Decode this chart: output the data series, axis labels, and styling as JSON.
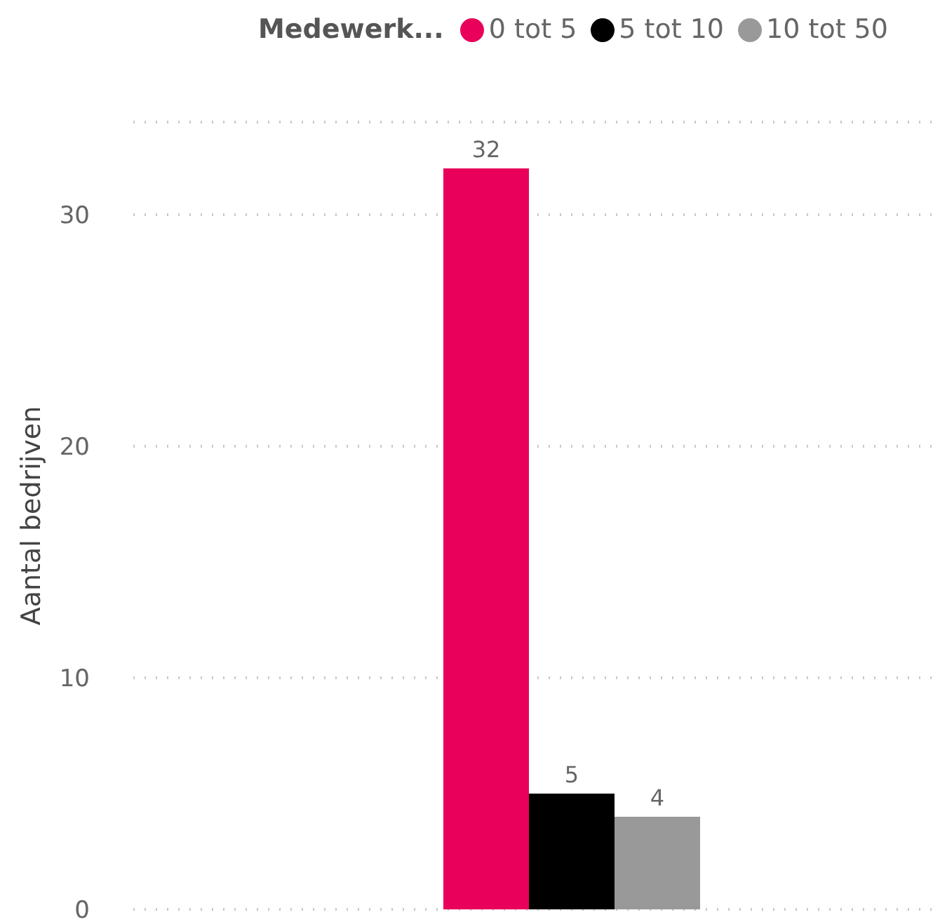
{
  "chart_data": {
    "type": "bar",
    "categories": [
      null
    ],
    "ylabel": "Aantal bedrijven",
    "legend_title": "Medewerk...",
    "legend": "top right",
    "grid": "y",
    "data_labels": true,
    "ylim": [
      0,
      34
    ],
    "yticks": [
      0,
      10,
      20,
      30
    ],
    "series": [
      {
        "name": "0 tot 5",
        "color": "#e8005a",
        "values": [
          32
        ]
      },
      {
        "name": "5 tot 10",
        "color": "#000000",
        "values": [
          5
        ]
      },
      {
        "name": "10 tot 50",
        "color": "#999999",
        "values": [
          4
        ]
      }
    ]
  }
}
